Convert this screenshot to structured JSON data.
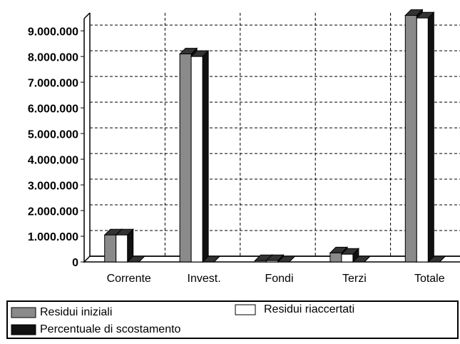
{
  "chart_data": {
    "type": "bar3d",
    "categories": [
      "Corrente",
      "Invest.",
      "Fondi",
      "Terzi",
      "Totale"
    ],
    "series": [
      {
        "name": "Residui iniziali",
        "color": "#8a8a8a",
        "values": [
          1050000,
          8100000,
          50000,
          350000,
          9600000
        ]
      },
      {
        "name": "Residui riaccertati",
        "color": "#ffffff",
        "values": [
          1050000,
          8000000,
          50000,
          300000,
          9500000
        ]
      },
      {
        "name": "Percentuale di scostamento",
        "color": "#111111",
        "values": [
          0,
          0,
          0,
          0,
          0
        ]
      }
    ],
    "ylim": [
      0,
      9700000
    ],
    "yticks": [
      0,
      {
        "value": 1000000,
        "label": "1.000.000"
      },
      {
        "value": 2000000,
        "label": "2.000.000"
      },
      {
        "value": 3000000,
        "label": "3.000.000"
      },
      {
        "value": 4000000,
        "label": "4.000.000"
      },
      {
        "value": 5000000,
        "label": "5.000.000"
      },
      {
        "value": 6000000,
        "label": "6.000.000"
      },
      {
        "value": 7000000,
        "label": "7.000.000"
      },
      {
        "value": 8000000,
        "label": "8.000.000"
      },
      {
        "value": 9000000,
        "label": "9.000.000"
      }
    ],
    "grid": true
  }
}
